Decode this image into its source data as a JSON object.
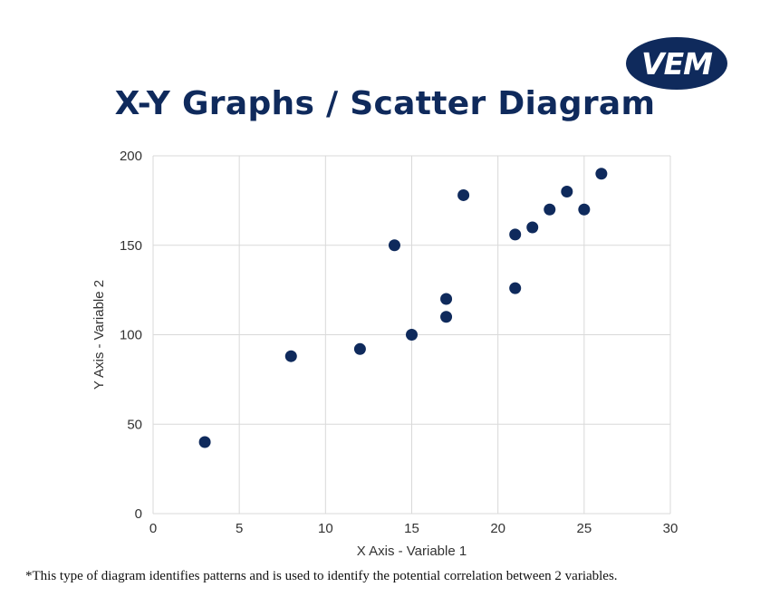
{
  "logo": {
    "text": "VEM",
    "color": "#0f2a5c"
  },
  "title": "X-Y Graphs / Scatter Diagram",
  "footnote": "*This type of diagram identifies patterns and is used to identify the potential correlation between 2 variables.",
  "colors": {
    "marker": "#0f2a5c",
    "grid": "#d9d9d9",
    "axis_text": "#333333"
  },
  "chart_data": {
    "type": "scatter",
    "title": "X-Y Graphs / Scatter Diagram",
    "xlabel": "X Axis - Variable 1",
    "ylabel": "Y Axis - Variable 2",
    "xlim": [
      0,
      30
    ],
    "ylim": [
      0,
      200
    ],
    "xticks": [
      0,
      5,
      10,
      15,
      20,
      25,
      30
    ],
    "yticks": [
      0,
      50,
      100,
      150,
      200
    ],
    "grid": true,
    "points": [
      {
        "x": 3,
        "y": 40
      },
      {
        "x": 8,
        "y": 88
      },
      {
        "x": 12,
        "y": 92
      },
      {
        "x": 14,
        "y": 150
      },
      {
        "x": 15,
        "y": 100
      },
      {
        "x": 17,
        "y": 120
      },
      {
        "x": 17,
        "y": 110
      },
      {
        "x": 18,
        "y": 178
      },
      {
        "x": 21,
        "y": 156
      },
      {
        "x": 21,
        "y": 126
      },
      {
        "x": 22,
        "y": 160
      },
      {
        "x": 23,
        "y": 170
      },
      {
        "x": 24,
        "y": 180
      },
      {
        "x": 25,
        "y": 170
      },
      {
        "x": 26,
        "y": 190
      }
    ]
  }
}
